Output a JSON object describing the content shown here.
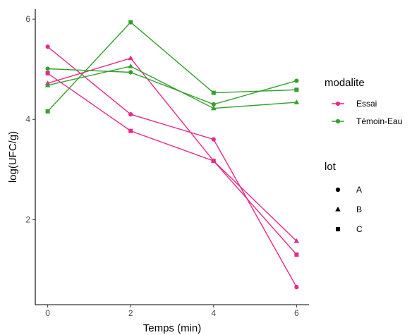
{
  "chart_data": {
    "type": "line",
    "xlabel": "Temps (min)",
    "ylabel": "log(UFC/g)",
    "xlim": [
      -0.3,
      6.3
    ],
    "ylim": [
      0.3,
      6.2
    ],
    "x_ticks": [
      "0",
      "2",
      "4",
      "6"
    ],
    "y_ticks": [
      "2",
      "4",
      "6"
    ],
    "grid": false,
    "legend_placement": "right",
    "legends": {
      "modalite": {
        "title": "modalite",
        "entries": [
          {
            "name": "Essai",
            "color": "#e7298a"
          },
          {
            "name": "Témoin-Eau",
            "color": "#33a02c"
          }
        ]
      },
      "lot": {
        "title": "lot",
        "entries": [
          {
            "name": "A",
            "shape": "circle"
          },
          {
            "name": "B",
            "shape": "triangle"
          },
          {
            "name": "C",
            "shape": "square"
          }
        ]
      }
    },
    "series": [
      {
        "modalite": "Essai",
        "lot": "A",
        "color": "#e7298a",
        "shape": "circle",
        "x": [
          0,
          2,
          4,
          6
        ],
        "y": [
          5.45,
          4.1,
          3.6,
          0.65
        ]
      },
      {
        "modalite": "Essai",
        "lot": "B",
        "color": "#e7298a",
        "shape": "triangle",
        "x": [
          0,
          2,
          4,
          6
        ],
        "y": [
          4.72,
          5.22,
          3.17,
          1.57
        ]
      },
      {
        "modalite": "Essai",
        "lot": "C",
        "color": "#e7298a",
        "shape": "square",
        "x": [
          0,
          2,
          4,
          6
        ],
        "y": [
          4.92,
          3.77,
          3.17,
          1.3
        ]
      },
      {
        "modalite": "Témoin-Eau",
        "lot": "A",
        "color": "#33a02c",
        "shape": "circle",
        "x": [
          0,
          2,
          4,
          6
        ],
        "y": [
          5.01,
          4.94,
          4.3,
          4.77
        ]
      },
      {
        "modalite": "Témoin-Eau",
        "lot": "B",
        "color": "#33a02c",
        "shape": "triangle",
        "x": [
          0,
          2,
          4,
          6
        ],
        "y": [
          4.68,
          5.06,
          4.22,
          4.34
        ]
      },
      {
        "modalite": "Témoin-Eau",
        "lot": "C",
        "color": "#33a02c",
        "shape": "square",
        "x": [
          0,
          2,
          4,
          6
        ],
        "y": [
          4.16,
          5.94,
          4.53,
          4.59
        ]
      }
    ]
  }
}
